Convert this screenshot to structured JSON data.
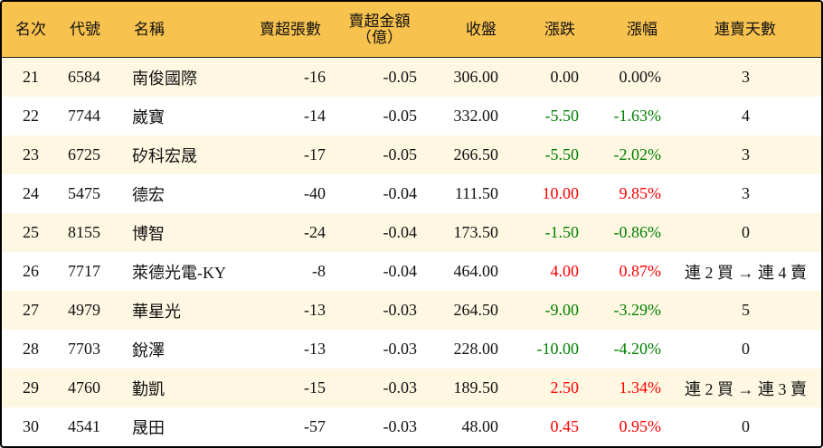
{
  "headers": {
    "rank": "名次",
    "code": "代號",
    "name": "名稱",
    "shares": "賣超張數",
    "amount": "賣超金額",
    "amount_unit": "（億）",
    "close": "收盤",
    "change": "漲跌",
    "pct": "漲幅",
    "days": "連賣天數"
  },
  "colors": {
    "header_bg": "#F8C24E",
    "odd_row_bg": "#FEF7E2",
    "up": "#FF0000",
    "down": "#008000"
  },
  "rows": [
    {
      "rank": "21",
      "code": "6584",
      "name": "南俊國際",
      "shares": "-16",
      "amount": "-0.05",
      "close": "306.00",
      "change": "0.00",
      "pct": "0.00%",
      "days": "3",
      "dir": "flat"
    },
    {
      "rank": "22",
      "code": "7744",
      "name": "崴寶",
      "shares": "-14",
      "amount": "-0.05",
      "close": "332.00",
      "change": "-5.50",
      "pct": "-1.63%",
      "days": "4",
      "dir": "down"
    },
    {
      "rank": "23",
      "code": "6725",
      "name": "矽科宏晟",
      "shares": "-17",
      "amount": "-0.05",
      "close": "266.50",
      "change": "-5.50",
      "pct": "-2.02%",
      "days": "3",
      "dir": "down"
    },
    {
      "rank": "24",
      "code": "5475",
      "name": "德宏",
      "shares": "-40",
      "amount": "-0.04",
      "close": "111.50",
      "change": "10.00",
      "pct": "9.85%",
      "days": "3",
      "dir": "up"
    },
    {
      "rank": "25",
      "code": "8155",
      "name": "博智",
      "shares": "-24",
      "amount": "-0.04",
      "close": "173.50",
      "change": "-1.50",
      "pct": "-0.86%",
      "days": "0",
      "dir": "down"
    },
    {
      "rank": "26",
      "code": "7717",
      "name": "萊德光電-KY",
      "shares": "-8",
      "amount": "-0.04",
      "close": "464.00",
      "change": "4.00",
      "pct": "0.87%",
      "days": "連 2 買 → 連 4 賣",
      "dir": "up"
    },
    {
      "rank": "27",
      "code": "4979",
      "name": "華星光",
      "shares": "-13",
      "amount": "-0.03",
      "close": "264.50",
      "change": "-9.00",
      "pct": "-3.29%",
      "days": "5",
      "dir": "down"
    },
    {
      "rank": "28",
      "code": "7703",
      "name": "銳澤",
      "shares": "-13",
      "amount": "-0.03",
      "close": "228.00",
      "change": "-10.00",
      "pct": "-4.20%",
      "days": "0",
      "dir": "down"
    },
    {
      "rank": "29",
      "code": "4760",
      "name": "勤凱",
      "shares": "-15",
      "amount": "-0.03",
      "close": "189.50",
      "change": "2.50",
      "pct": "1.34%",
      "days": "連 2 買 → 連 3 賣",
      "dir": "up"
    },
    {
      "rank": "30",
      "code": "4541",
      "name": "晟田",
      "shares": "-57",
      "amount": "-0.03",
      "close": "48.00",
      "change": "0.45",
      "pct": "0.95%",
      "days": "0",
      "dir": "up"
    }
  ]
}
